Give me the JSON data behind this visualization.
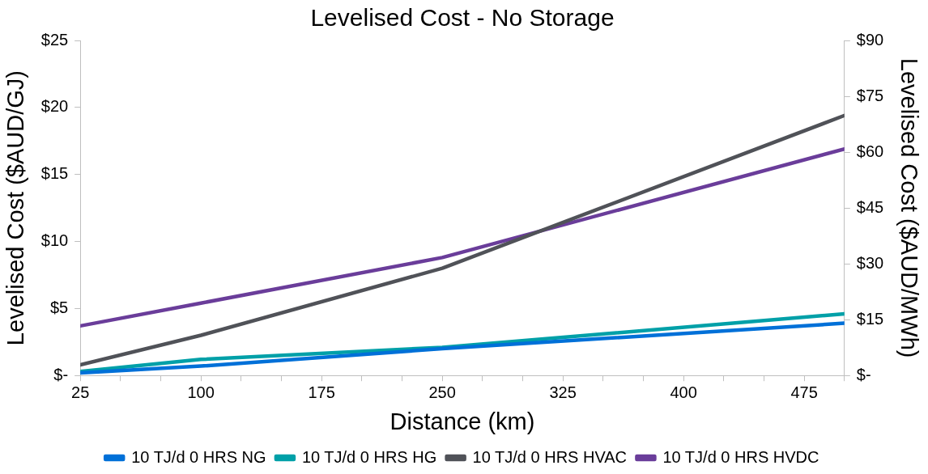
{
  "chart_data": {
    "type": "line",
    "title": "Levelised Cost - No Storage",
    "xlabel": "Distance (km)",
    "ylabel": "Levelised Cost ($AUD/GJ)",
    "y2label": "Levelised Cost ($AUD/MWh)",
    "x": [
      25,
      100,
      250,
      500
    ],
    "xlim": [
      25,
      500
    ],
    "xticks": [
      25,
      {
        "value": 50,
        "label": null
      },
      {
        "value": 75,
        "label": null
      },
      100,
      {
        "value": 125,
        "label": null
      },
      {
        "value": 150,
        "label": null
      },
      175,
      {
        "value": 200,
        "label": null
      },
      {
        "value": 225,
        "label": null
      },
      250,
      {
        "value": 275,
        "label": null
      },
      {
        "value": 300,
        "label": null
      },
      325,
      {
        "value": 350,
        "label": null
      },
      {
        "value": 375,
        "label": null
      },
      400,
      {
        "value": 425,
        "label": null
      },
      {
        "value": 450,
        "label": null
      },
      475,
      {
        "value": 500,
        "label": null
      }
    ],
    "ylim": [
      0,
      25
    ],
    "yticks": [
      {
        "value": 0,
        "label": "$-"
      },
      {
        "value": 5,
        "label": "$5"
      },
      {
        "value": 10,
        "label": "$10"
      },
      {
        "value": 15,
        "label": "$15"
      },
      {
        "value": 20,
        "label": "$20"
      },
      {
        "value": 25,
        "label": "$25"
      }
    ],
    "y2lim": [
      0,
      90
    ],
    "y2ticks": [
      {
        "value": 0,
        "label": "$-"
      },
      {
        "value": 15,
        "label": "$15"
      },
      {
        "value": 30,
        "label": "$30"
      },
      {
        "value": 45,
        "label": "$45"
      },
      {
        "value": 60,
        "label": "$60"
      },
      {
        "value": 75,
        "label": "$75"
      },
      {
        "value": 90,
        "label": "$90"
      }
    ],
    "grid": false,
    "legend": "bottom",
    "marker": "none",
    "line_style": "solid",
    "series": [
      {
        "name": "10 TJ/d 0 HRS NG",
        "color": "#0070d8",
        "values": [
          0.2,
          0.7,
          2.0,
          3.9
        ]
      },
      {
        "name": "10 TJ/d 0 HRS HG",
        "color": "#00a0a8",
        "values": [
          0.3,
          1.2,
          2.1,
          4.6
        ]
      },
      {
        "name": "10 TJ/d 0 HRS HVAC",
        "color": "#505258",
        "values": [
          0.8,
          3.0,
          8.0,
          19.4
        ]
      },
      {
        "name": "10 TJ/d 0 HRS HVDC",
        "color": "#6a3d9a",
        "values": [
          3.7,
          5.4,
          8.8,
          16.9
        ]
      }
    ]
  }
}
